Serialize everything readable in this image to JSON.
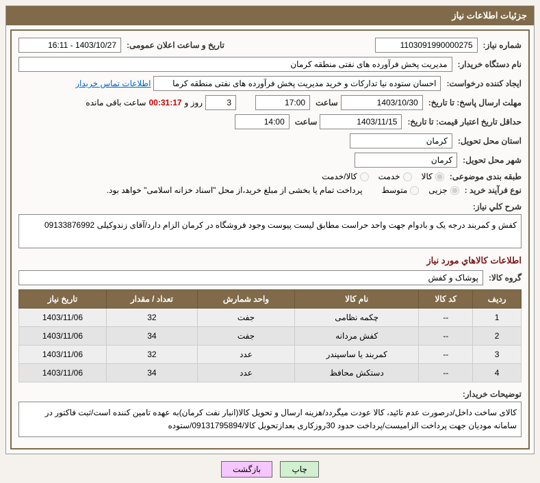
{
  "header": {
    "title": "جزئیات اطلاعات نیاز"
  },
  "fields": {
    "need_no_label": "شماره نیاز:",
    "need_no": "1103091990000275",
    "announce_date_label": "تاریخ و ساعت اعلان عمومی:",
    "announce_date": "1403/10/27 - 16:11",
    "buyer_org_label": "نام دستگاه خریدار:",
    "buyer_org": "مدیریت پخش فرآورده های نفتی منطقه کرمان",
    "requester_label": "ایجاد کننده درخواست:",
    "requester": "احسان  ستوده نیا  تدارکات و خرید  مدیریت پخش فرآورده های نفتی منطقه کرما",
    "contact_link": "اطلاعات تماس خریدار",
    "reply_deadline_label": "مهلت ارسال پاسخ: تا تاریخ:",
    "reply_date": "1403/10/30",
    "time_label": "ساعت",
    "reply_time": "17:00",
    "days": "3",
    "days_label": "روز و",
    "countdown": "00:31:17",
    "remain_label": "ساعت باقی مانده",
    "validity_label": "حداقل تاریخ اعتبار قیمت: تا تاریخ:",
    "validity_date": "1403/11/15",
    "validity_time": "14:00",
    "province_label": "استان محل تحویل:",
    "province": "کرمان",
    "city_label": "شهر محل تحویل:",
    "city": "کرمان",
    "category_label": "طبقه بندی موضوعی:",
    "purchase_type_label": "نوع فرآیند خرید :",
    "payment_note": "پرداخت تمام یا بخشی از مبلغ خرید،از محل \"اسناد خزانه اسلامی\" خواهد بود.",
    "desc_label": "شرح کلي نياز:",
    "desc": "کفش و کمربند درجه یک و بادوام جهت واحد حراست مطابق لیست پیوست وجود فروشگاه در کرمان الزام دارد/آقای زندوکیلی  09133876992",
    "items_section": "اطلاعات کالاهاي مورد نياز",
    "group_label": "گروه کالا:",
    "group": "پوشاک و کفش",
    "buyer_notes_label": "توضیحات خریدار:",
    "buyer_notes": "کالای ساخت داخل/درصورت عدم تائید، کالا عودت میگردد/هزینه ارسال و تحویل کالا(انبار نفت کرمان)به عهده تامین کننده است/ثبت فاکتور در سامانه مودیان جهت پرداخت الزامیست/پرداخت حدود 30روزکاری بعدازتحویل کالا/09131795894/ستوده"
  },
  "radios": {
    "category": [
      {
        "label": "کالا",
        "checked": true
      },
      {
        "label": "خدمت",
        "checked": false
      },
      {
        "label": "کالا/خدمت",
        "checked": false
      }
    ],
    "purchase": [
      {
        "label": "جزیی",
        "checked": true
      },
      {
        "label": "متوسط",
        "checked": false
      }
    ]
  },
  "table": {
    "headers": [
      "ردیف",
      "کد کالا",
      "نام کالا",
      "واحد شمارش",
      "تعداد / مقدار",
      "تاریخ نیاز"
    ],
    "rows": [
      [
        "1",
        "--",
        "چکمه نظامی",
        "جفت",
        "32",
        "1403/11/06"
      ],
      [
        "2",
        "--",
        "کفش مردانه",
        "جفت",
        "34",
        "1403/11/06"
      ],
      [
        "3",
        "--",
        "کمربند یا ساسپندر",
        "عدد",
        "32",
        "1403/11/06"
      ],
      [
        "4",
        "--",
        "دستکش محافظ",
        "عدد",
        "34",
        "1403/11/06"
      ]
    ]
  },
  "buttons": {
    "print": "چاپ",
    "back": "بازگشت"
  }
}
